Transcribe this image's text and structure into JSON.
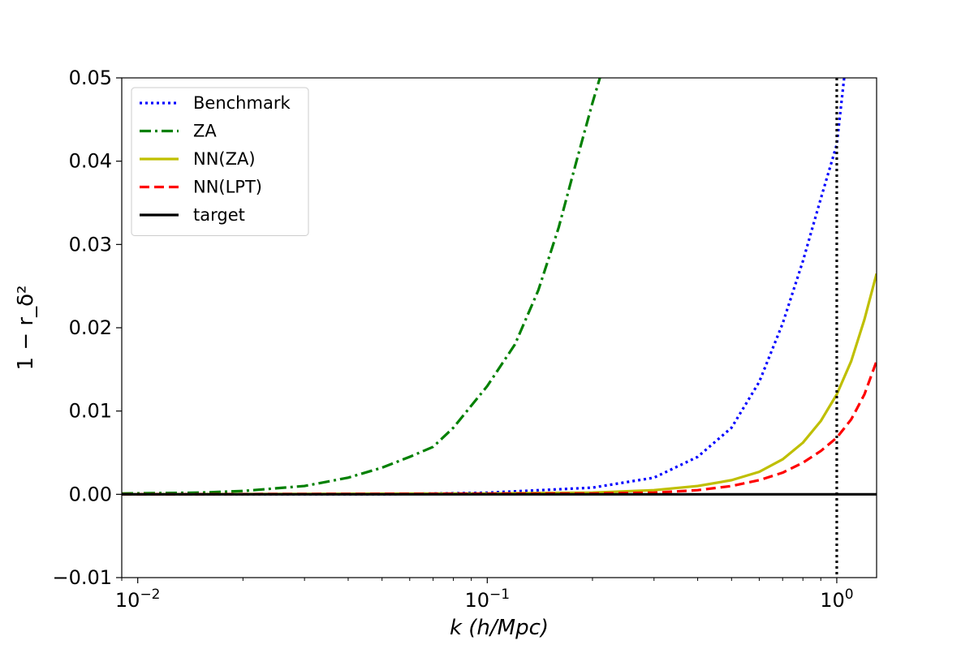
{
  "chart_data": {
    "type": "line",
    "title": "",
    "xlabel": "k (h/Mpc)",
    "ylabel": "1 − r_δ²",
    "xscale": "log",
    "xlim": [
      0.009,
      1.3
    ],
    "ylim": [
      -0.01,
      0.05
    ],
    "xticks": [
      {
        "value": 0.01,
        "base": "10",
        "exp": "−2"
      },
      {
        "value": 0.1,
        "base": "10",
        "exp": "−1"
      },
      {
        "value": 1.0,
        "base": "10",
        "exp": "0"
      }
    ],
    "yticks": [
      {
        "value": -0.01,
        "label": "−0.01"
      },
      {
        "value": 0.0,
        "label": "0.00"
      },
      {
        "value": 0.01,
        "label": "0.01"
      },
      {
        "value": 0.02,
        "label": "0.02"
      },
      {
        "value": 0.03,
        "label": "0.03"
      },
      {
        "value": 0.04,
        "label": "0.04"
      },
      {
        "value": 0.05,
        "label": "0.05"
      }
    ],
    "grid": false,
    "legend_position": "top-left",
    "vline": {
      "x": 1.0,
      "color": "#000000",
      "style": "dotted"
    },
    "series": [
      {
        "name": "Benchmark",
        "color": "#0000ff",
        "style": "dotted",
        "x": [
          0.009,
          0.05,
          0.1,
          0.2,
          0.3,
          0.4,
          0.5,
          0.6,
          0.7,
          0.8,
          0.9,
          1.0,
          1.05
        ],
        "y": [
          0.0,
          0.0,
          0.0002,
          0.0008,
          0.002,
          0.0045,
          0.008,
          0.0135,
          0.0205,
          0.028,
          0.0355,
          0.042,
          0.05
        ]
      },
      {
        "name": "ZA",
        "color": "#008000",
        "style": "dashdot",
        "x": [
          0.009,
          0.015,
          0.02,
          0.03,
          0.04,
          0.05,
          0.06,
          0.07,
          0.08,
          0.1,
          0.12,
          0.14,
          0.16,
          0.18,
          0.2,
          0.21
        ],
        "y": [
          0.0001,
          0.0002,
          0.0004,
          0.001,
          0.002,
          0.0032,
          0.0045,
          0.0057,
          0.008,
          0.013,
          0.018,
          0.0245,
          0.032,
          0.04,
          0.047,
          0.05
        ]
      },
      {
        "name": "NN(ZA)",
        "color": "#bfbf00",
        "style": "solid",
        "x": [
          0.009,
          0.1,
          0.2,
          0.3,
          0.4,
          0.5,
          0.6,
          0.7,
          0.8,
          0.9,
          1.0,
          1.1,
          1.2,
          1.3
        ],
        "y": [
          0.0,
          0.0001,
          0.0002,
          0.0005,
          0.001,
          0.0017,
          0.0027,
          0.0042,
          0.0062,
          0.0088,
          0.012,
          0.016,
          0.021,
          0.0265
        ]
      },
      {
        "name": "NN(LPT)",
        "color": "#ff0000",
        "style": "dashed",
        "x": [
          0.009,
          0.2,
          0.3,
          0.4,
          0.5,
          0.6,
          0.7,
          0.8,
          0.9,
          1.0,
          1.1,
          1.2,
          1.3
        ],
        "y": [
          0.0,
          0.0001,
          0.0002,
          0.0005,
          0.001,
          0.0017,
          0.0026,
          0.0038,
          0.0052,
          0.0068,
          0.009,
          0.012,
          0.016
        ]
      },
      {
        "name": "target",
        "color": "#000000",
        "style": "solid",
        "x": [
          0.009,
          1.3
        ],
        "y": [
          0.0,
          0.0
        ]
      }
    ]
  }
}
